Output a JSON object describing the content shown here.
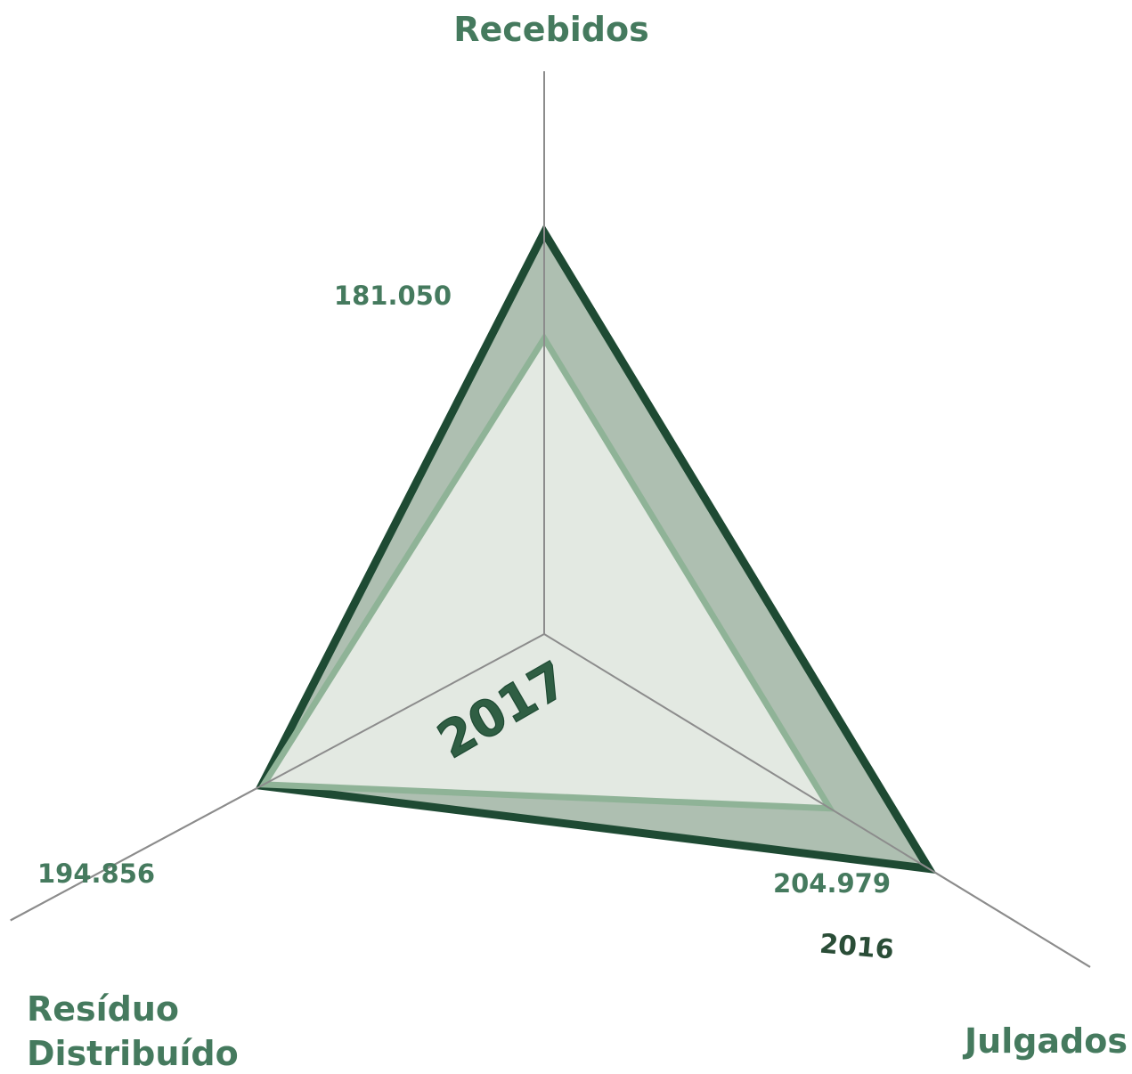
{
  "chart_data": {
    "type": "radar",
    "axes": [
      "Recebidos",
      "Julgados",
      "Resíduo Distribuído"
    ],
    "axis_labels": {
      "recebidos": "Recebidos",
      "julgados": "Julgados",
      "residuo_line1": "Resíduo",
      "residuo_line2": "Distribuído"
    },
    "series": [
      {
        "name": "2016",
        "values": [
          246000,
          276000,
          196500
        ],
        "color": "#1e4a33",
        "fill": "#aebfb1"
      },
      {
        "name": "2017",
        "values": [
          181050,
          204979,
          194856
        ],
        "color": "#8fb397",
        "fill": "#e3e9e2"
      }
    ],
    "data_labels": {
      "recebidos_2017": "181.050",
      "julgados_2017": "204.979",
      "residuo_2017": "194.856"
    },
    "center_label": "2017",
    "series_label_2016": "2016"
  }
}
